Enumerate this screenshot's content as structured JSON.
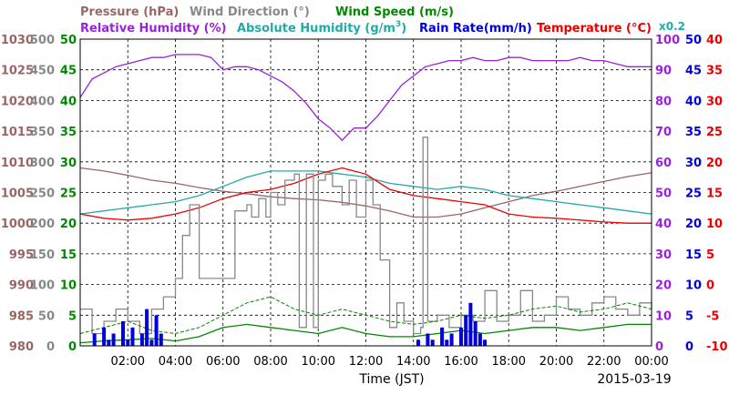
{
  "chart_data": {
    "type": "line",
    "date": "2015-03-19",
    "xlabel": "Time (JST)",
    "x_ticks": [
      "02:00",
      "04:00",
      "06:00",
      "08:00",
      "10:00",
      "12:00",
      "14:00",
      "16:00",
      "18:00",
      "20:00",
      "22:00",
      "00:00"
    ],
    "x_range_hours": [
      0,
      24
    ],
    "legend": [
      {
        "label": "Pressure (hPa)",
        "color": "#996666"
      },
      {
        "label": "Wind Direction (°)",
        "color": "#888888"
      },
      {
        "label": "Wind Speed (m/s)",
        "color": "#008800"
      },
      {
        "label": "Relative Humidity (%)",
        "color": "#9922dd"
      },
      {
        "label": "Absolute Humidity (g/m",
        "sup": "3",
        "close": ")",
        "color": "#22aaaa"
      },
      {
        "label": "Rain Rate(mm/h)",
        "color": "#0000dd"
      },
      {
        "label": "Temperature (°C)",
        "color": "#ee0000"
      }
    ],
    "factor_label": "x0.2",
    "axes": {
      "pressure": {
        "color": "#996666",
        "ticks": [
          "1030",
          "1025",
          "1020",
          "1015",
          "1010",
          "1005",
          "1000",
          "995",
          "990",
          "985",
          "980"
        ],
        "range": [
          980,
          1030
        ]
      },
      "wind_dir": {
        "color": "#888888",
        "ticks": [
          "500",
          "450",
          "400",
          "350",
          "300",
          "250",
          "200",
          "150",
          "100",
          "50",
          "0"
        ],
        "range": [
          0,
          500
        ]
      },
      "wind_speed": {
        "color": "#008800",
        "ticks": [
          "50",
          "45",
          "40",
          "35",
          "30",
          "25",
          "20",
          "15",
          "10",
          "5",
          "0"
        ],
        "range": [
          0,
          50
        ]
      },
      "rel_humidity": {
        "color": "#9922dd",
        "ticks": [
          "100",
          "90",
          "80",
          "70",
          "60",
          "50",
          "40",
          "30",
          "20",
          "10",
          "0"
        ],
        "range": [
          0,
          100
        ]
      },
      "rain_rate": {
        "color": "#0000dd",
        "ticks": [
          "50",
          "45",
          "40",
          "35",
          "30",
          "25",
          "20",
          "15",
          "10",
          "5",
          "0"
        ],
        "range": [
          0,
          50
        ]
      },
      "temperature": {
        "color": "#ee0000",
        "ticks": [
          "40",
          "35",
          "30",
          "25",
          "20",
          "15",
          "10",
          "5",
          "0",
          "-5",
          "-10"
        ],
        "range": [
          -10,
          40
        ]
      }
    },
    "series": [
      {
        "name": "Pressure (hPa)",
        "axis": "pressure",
        "style": "line",
        "color": "#996666",
        "x": [
          0,
          1,
          2,
          3,
          4,
          5,
          6,
          7,
          8,
          9,
          10,
          11,
          12,
          13,
          14,
          15,
          16,
          17,
          18,
          19,
          20,
          21,
          22,
          23,
          24
        ],
        "y": [
          1009,
          1008.5,
          1007.8,
          1007,
          1006.5,
          1005.8,
          1005.2,
          1004.8,
          1004.3,
          1004,
          1003.8,
          1003.4,
          1002.8,
          1002,
          1001,
          1001,
          1001.5,
          1002.5,
          1003.5,
          1004.5,
          1005.2,
          1006,
          1006.8,
          1007.6,
          1008.2
        ]
      },
      {
        "name": "Relative Humidity (%)",
        "axis": "rel_humidity",
        "style": "line",
        "color": "#9922dd",
        "x": [
          0,
          0.5,
          1,
          1.5,
          2,
          2.5,
          3,
          3.5,
          4,
          4.5,
          5,
          5.5,
          6,
          6.5,
          7,
          7.5,
          8,
          8.5,
          9,
          9.5,
          10,
          10.5,
          11,
          11.5,
          12,
          12.5,
          13,
          13.5,
          14,
          14.5,
          15,
          15.5,
          16,
          16.5,
          17,
          17.5,
          18,
          18.5,
          19,
          19.5,
          20,
          20.5,
          21,
          21.5,
          22,
          22.5,
          23,
          23.5,
          24
        ],
        "y": [
          81,
          87,
          89,
          91,
          92,
          93,
          94,
          94,
          95,
          95,
          95,
          94,
          90,
          91,
          91,
          90,
          88,
          86,
          83,
          79,
          74,
          71,
          67,
          71,
          71,
          75,
          80,
          85,
          88,
          91,
          92,
          93,
          93,
          94,
          93,
          93,
          94,
          94,
          93,
          93,
          93,
          93,
          94,
          93,
          93,
          92,
          91,
          91,
          91
        ]
      },
      {
        "name": "Absolute Humidity (g/m3)",
        "axis": "rel_humidity",
        "style": "line",
        "color": "#22aaaa",
        "x": [
          0,
          1,
          2,
          3,
          4,
          5,
          6,
          7,
          8,
          9,
          10,
          11,
          12,
          13,
          14,
          15,
          16,
          17,
          18,
          19,
          20,
          21,
          22,
          23,
          24
        ],
        "y": [
          43,
          44,
          45,
          46,
          47,
          49,
          52,
          55,
          57,
          57,
          57,
          56,
          55,
          53,
          52,
          51,
          52,
          51,
          49,
          48,
          47,
          46,
          45,
          44,
          43
        ]
      },
      {
        "name": "Temperature (°C)",
        "axis": "temperature",
        "style": "line",
        "color": "#ee0000",
        "x": [
          0,
          1,
          2,
          3,
          4,
          5,
          6,
          7,
          8,
          9,
          10,
          11,
          12,
          13,
          14,
          15,
          16,
          17,
          18,
          19,
          20,
          21,
          22,
          23,
          24
        ],
        "y": [
          11.5,
          10.8,
          10.5,
          10.8,
          11.5,
          12.5,
          14,
          15,
          15.5,
          16.5,
          18,
          19,
          18,
          15.5,
          14.5,
          14,
          13.5,
          13,
          11.5,
          11,
          10.8,
          10.5,
          10.2,
          10,
          10
        ]
      },
      {
        "name": "Wind Direction (°)",
        "axis": "wind_dir",
        "style": "step",
        "color": "#888888",
        "x": [
          0,
          0.5,
          1,
          1.5,
          2,
          2.5,
          3,
          3.5,
          4,
          4.3,
          4.6,
          5,
          5.5,
          6,
          6.5,
          7,
          7.2,
          7.5,
          7.8,
          8,
          8.3,
          8.6,
          9,
          9.2,
          9.5,
          9.8,
          10,
          10.3,
          10.6,
          11,
          11.3,
          11.6,
          12,
          12.3,
          12.6,
          13,
          13.3,
          13.6,
          14,
          14.3,
          14.4,
          14.6,
          15,
          15.5,
          16,
          16.5,
          17,
          17.5,
          18,
          18.5,
          19,
          19.5,
          20,
          20.5,
          21,
          21.5,
          22,
          22.5,
          23,
          23.5,
          24
        ],
        "y": [
          60,
          20,
          40,
          60,
          40,
          20,
          60,
          80,
          110,
          180,
          230,
          110,
          110,
          110,
          220,
          230,
          210,
          240,
          210,
          250,
          230,
          270,
          280,
          30,
          280,
          30,
          270,
          280,
          260,
          230,
          270,
          210,
          270,
          230,
          140,
          30,
          70,
          40,
          20,
          30,
          340,
          40,
          50,
          30,
          50,
          40,
          90,
          40,
          50,
          90,
          40,
          50,
          80,
          60,
          50,
          70,
          80,
          60,
          50,
          70,
          60
        ]
      },
      {
        "name": "Wind Speed (m/s)",
        "axis": "wind_speed",
        "style": "line",
        "color": "#008800",
        "x": [
          0,
          1,
          2,
          3,
          4,
          5,
          6,
          7,
          8,
          9,
          10,
          11,
          12,
          13,
          14,
          15,
          16,
          17,
          18,
          19,
          20,
          21,
          22,
          23,
          24
        ],
        "y": [
          0.5,
          0.8,
          1,
          1.2,
          0.8,
          1.5,
          3,
          3.5,
          3,
          2.5,
          2,
          3,
          2,
          1.5,
          1.5,
          2,
          2.5,
          2,
          2.5,
          3,
          3,
          2.5,
          3,
          3.5,
          3.5
        ]
      },
      {
        "name": "Wind Speed Max (m/s)",
        "axis": "wind_speed",
        "style": "dashed",
        "color": "#008800",
        "x": [
          0,
          1,
          2,
          3,
          4,
          5,
          6,
          7,
          8,
          9,
          10,
          11,
          12,
          13,
          14,
          15,
          16,
          17,
          18,
          19,
          20,
          21,
          22,
          23,
          24
        ],
        "y": [
          2,
          3,
          4,
          2.5,
          2,
          3,
          5,
          7,
          8,
          6,
          5,
          6,
          5,
          4,
          3.5,
          4,
          5,
          4.5,
          5,
          6,
          6.5,
          5.5,
          6,
          7,
          6
        ]
      },
      {
        "name": "Rain Rate(mm/h)",
        "axis": "rain_rate",
        "style": "area",
        "color": "#0000dd",
        "x": [
          0.6,
          0.8,
          1,
          1.2,
          1.4,
          1.6,
          1.8,
          2,
          2.2,
          2.4,
          2.6,
          2.8,
          3,
          3.2,
          3.4,
          3.6,
          14.2,
          14.4,
          14.6,
          14.8,
          15,
          15.2,
          15.4,
          15.6,
          15.8,
          16,
          16.2,
          16.4,
          16.6,
          16.8,
          17,
          17.2
        ],
        "y": [
          2,
          0,
          3,
          1,
          2,
          0,
          4,
          1,
          3,
          0,
          2,
          6,
          1,
          5,
          2,
          0,
          1,
          0,
          2,
          1,
          0,
          3,
          1,
          2,
          0,
          3,
          5,
          7,
          4,
          2,
          1,
          0
        ]
      }
    ]
  }
}
